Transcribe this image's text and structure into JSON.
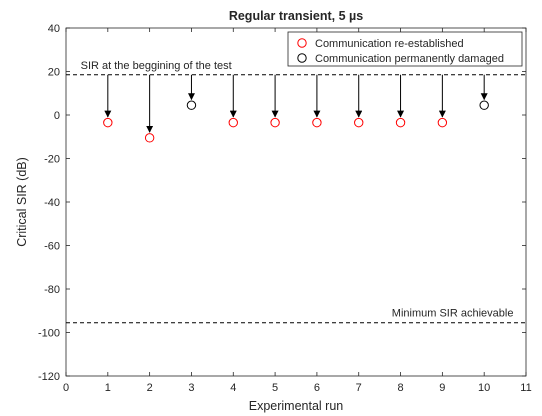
{
  "chart_data": {
    "type": "scatter",
    "title": "Regular transient, 5 µs",
    "xlabel": "Experimental run",
    "ylabel": "Critical SIR (dB)",
    "xlim": [
      0,
      11
    ],
    "ylim": [
      -120,
      40
    ],
    "xticks": [
      0,
      1,
      2,
      3,
      4,
      5,
      6,
      7,
      8,
      9,
      10,
      11
    ],
    "yticks": [
      -120,
      -100,
      -80,
      -60,
      -40,
      -20,
      0,
      20,
      40
    ],
    "grid": false,
    "legend_position": "top-right",
    "series": [
      {
        "name": "Communication re-established",
        "color": "#ff0000",
        "marker": "circle-open",
        "x": [
          1,
          2,
          4,
          5,
          6,
          7,
          8,
          9
        ],
        "y": [
          -3.5,
          -10.5,
          -3.5,
          -3.5,
          -3.5,
          -3.5,
          -3.5,
          -3.5
        ]
      },
      {
        "name": "Communication permanently damaged",
        "color": "#000000",
        "marker": "circle-open",
        "x": [
          3,
          10
        ],
        "y": [
          4.5,
          4.5
        ]
      }
    ],
    "reference_lines": [
      {
        "y": 18.5,
        "label": "SIR at the beggining of the test",
        "style": "dashed"
      },
      {
        "y": -95.5,
        "label": "Minimum SIR achievable",
        "style": "dashed"
      }
    ],
    "arrows": [
      {
        "x": 1,
        "y_from": 18.5,
        "y_to": -3.5
      },
      {
        "x": 2,
        "y_from": 18.5,
        "y_to": -10.5
      },
      {
        "x": 3,
        "y_from": 18.5,
        "y_to": 4.5
      },
      {
        "x": 4,
        "y_from": 18.5,
        "y_to": -3.5
      },
      {
        "x": 5,
        "y_from": 18.5,
        "y_to": -3.5
      },
      {
        "x": 6,
        "y_from": 18.5,
        "y_to": -3.5
      },
      {
        "x": 7,
        "y_from": 18.5,
        "y_to": -3.5
      },
      {
        "x": 8,
        "y_from": 18.5,
        "y_to": -3.5
      },
      {
        "x": 9,
        "y_from": 18.5,
        "y_to": -3.5
      },
      {
        "x": 10,
        "y_from": 18.5,
        "y_to": 4.5
      }
    ]
  }
}
